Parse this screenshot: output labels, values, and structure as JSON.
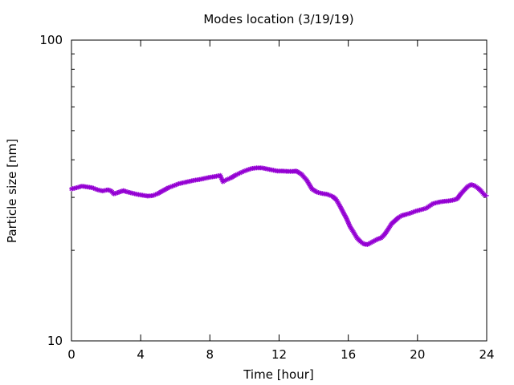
{
  "chart_data": {
    "type": "scatter",
    "title": "Modes location (3/19/19)",
    "xlabel": "Time [hour]",
    "ylabel": "Particle size [nm]",
    "xlim": [
      0,
      24
    ],
    "ylim": [
      10,
      100
    ],
    "yscale": "log",
    "grid": false,
    "legend": "none",
    "x_ticks": [
      0,
      4,
      8,
      12,
      16,
      20,
      24
    ],
    "y_ticks": [
      10,
      100
    ],
    "x_tick_labels": [
      "0",
      "4",
      "8",
      "12",
      "16",
      "20",
      "24"
    ],
    "y_tick_labels": [
      "10",
      "100"
    ],
    "series": [
      {
        "color": "#9400d3",
        "marker": "asterisk",
        "x": [
          0.0,
          0.3,
          0.6,
          0.9,
          1.2,
          1.5,
          1.8,
          2.1,
          2.3,
          2.45,
          2.6,
          2.8,
          3.0,
          3.2,
          3.5,
          3.8,
          4.1,
          4.4,
          4.7,
          5.0,
          5.3,
          5.6,
          5.9,
          6.2,
          6.5,
          6.8,
          7.1,
          7.4,
          7.7,
          8.0,
          8.3,
          8.6,
          8.75,
          8.9,
          9.2,
          9.5,
          9.8,
          10.1,
          10.4,
          10.7,
          11.0,
          11.3,
          11.6,
          11.9,
          12.2,
          12.5,
          12.8,
          13.0,
          13.3,
          13.6,
          13.9,
          14.2,
          14.5,
          14.8,
          15.1,
          15.3,
          15.5,
          15.7,
          15.9,
          16.1,
          16.3,
          16.5,
          16.7,
          16.9,
          17.1,
          17.3,
          17.5,
          17.7,
          17.9,
          18.1,
          18.3,
          18.5,
          18.7,
          18.9,
          19.1,
          19.3,
          19.6,
          19.9,
          20.2,
          20.5,
          20.7,
          20.9,
          21.2,
          21.5,
          21.8,
          22.1,
          22.3,
          22.5,
          22.7,
          22.9,
          23.1,
          23.3,
          23.5,
          23.7,
          23.85,
          24.0
        ],
        "y": [
          32.0,
          32.3,
          32.7,
          32.5,
          32.3,
          31.8,
          31.5,
          31.8,
          31.5,
          30.8,
          31.0,
          31.3,
          31.6,
          31.3,
          31.0,
          30.7,
          30.5,
          30.3,
          30.4,
          30.9,
          31.6,
          32.3,
          32.8,
          33.3,
          33.6,
          33.9,
          34.2,
          34.4,
          34.7,
          35.0,
          35.2,
          35.5,
          33.8,
          34.2,
          34.8,
          35.6,
          36.3,
          36.9,
          37.4,
          37.6,
          37.6,
          37.3,
          37.0,
          36.7,
          36.7,
          36.6,
          36.6,
          36.7,
          35.8,
          34.2,
          32.0,
          31.2,
          30.9,
          30.7,
          30.2,
          29.5,
          28.2,
          26.8,
          25.5,
          24.0,
          23.0,
          22.0,
          21.4,
          21.0,
          20.9,
          21.2,
          21.5,
          21.8,
          22.0,
          22.6,
          23.5,
          24.5,
          25.1,
          25.7,
          26.1,
          26.3,
          26.6,
          27.0,
          27.3,
          27.6,
          28.1,
          28.6,
          28.9,
          29.1,
          29.2,
          29.4,
          29.7,
          30.8,
          31.7,
          32.6,
          33.1,
          32.8,
          32.2,
          31.4,
          30.6,
          30.4
        ]
      }
    ]
  }
}
